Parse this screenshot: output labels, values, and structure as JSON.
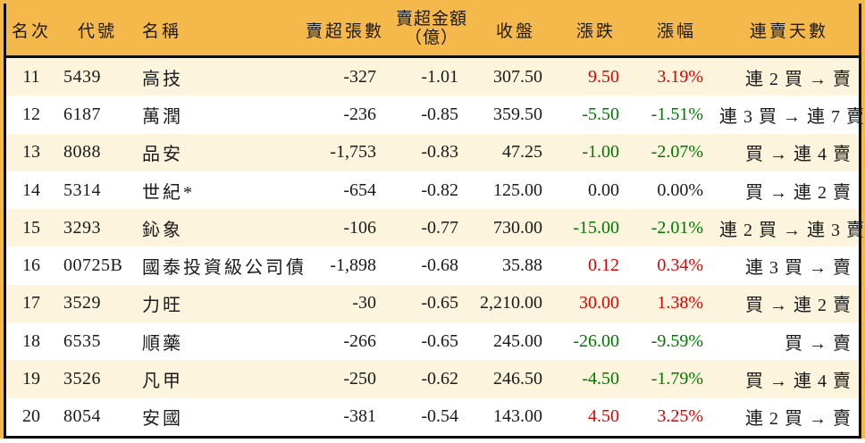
{
  "table": {
    "header_amount": {
      "line1": "賣超金額",
      "line2": "（億）"
    }
  },
  "colors": {
    "header_bg": "#F5B84A",
    "row_alt_bg": "#FCF4DC",
    "row_bg": "#FFFFFF",
    "border": "#0D0D0D",
    "up_red": "#E00000",
    "down_green": "#007800",
    "text": "#1A1A1A"
  },
  "chart_data": {
    "type": "table",
    "columns": [
      "名次",
      "代號",
      "名稱",
      "賣超張數",
      "賣超金額（億）",
      "收盤",
      "漲跌",
      "漲幅",
      "連賣天數"
    ],
    "rows": [
      {
        "rank": "11",
        "code": "5439",
        "name": "高技",
        "sell_volume": "-327",
        "sell_amount_yi": "-1.01",
        "close": "307.50",
        "change": "9.50",
        "change_pct": "3.19%",
        "trend": "up",
        "streak": "連 2 買 → 賣"
      },
      {
        "rank": "12",
        "code": "6187",
        "name": "萬潤",
        "sell_volume": "-236",
        "sell_amount_yi": "-0.85",
        "close": "359.50",
        "change": "-5.50",
        "change_pct": "-1.51%",
        "trend": "down",
        "streak": "連 3 買 → 連 7 賣"
      },
      {
        "rank": "13",
        "code": "8088",
        "name": "品安",
        "sell_volume": "-1,753",
        "sell_amount_yi": "-0.83",
        "close": "47.25",
        "change": "-1.00",
        "change_pct": "-2.07%",
        "trend": "down",
        "streak": "買 → 連 4 賣"
      },
      {
        "rank": "14",
        "code": "5314",
        "name": "世紀*",
        "sell_volume": "-654",
        "sell_amount_yi": "-0.82",
        "close": "125.00",
        "change": "0.00",
        "change_pct": "0.00%",
        "trend": "flat",
        "streak": "買 → 連 2 賣"
      },
      {
        "rank": "15",
        "code": "3293",
        "name": "鈊象",
        "sell_volume": "-106",
        "sell_amount_yi": "-0.77",
        "close": "730.00",
        "change": "-15.00",
        "change_pct": "-2.01%",
        "trend": "down",
        "streak": "連 2 買 → 連 3 賣"
      },
      {
        "rank": "16",
        "code": "00725B",
        "name": "國泰投資級公司債",
        "sell_volume": "-1,898",
        "sell_amount_yi": "-0.68",
        "close": "35.88",
        "change": "0.12",
        "change_pct": "0.34%",
        "trend": "up",
        "streak": "連 3 買 → 賣"
      },
      {
        "rank": "17",
        "code": "3529",
        "name": "力旺",
        "sell_volume": "-30",
        "sell_amount_yi": "-0.65",
        "close": "2,210.00",
        "change": "30.00",
        "change_pct": "1.38%",
        "trend": "up",
        "streak": "買 → 連 2 賣"
      },
      {
        "rank": "18",
        "code": "6535",
        "name": "順藥",
        "sell_volume": "-266",
        "sell_amount_yi": "-0.65",
        "close": "245.00",
        "change": "-26.00",
        "change_pct": "-9.59%",
        "trend": "down",
        "streak": "買 → 賣"
      },
      {
        "rank": "19",
        "code": "3526",
        "name": "凡甲",
        "sell_volume": "-250",
        "sell_amount_yi": "-0.62",
        "close": "246.50",
        "change": "-4.50",
        "change_pct": "-1.79%",
        "trend": "down",
        "streak": "買 → 連 4 賣"
      },
      {
        "rank": "20",
        "code": "8054",
        "name": "安國",
        "sell_volume": "-381",
        "sell_amount_yi": "-0.54",
        "close": "143.00",
        "change": "4.50",
        "change_pct": "3.25%",
        "trend": "up",
        "streak": "連 2 買 → 賣"
      }
    ]
  }
}
